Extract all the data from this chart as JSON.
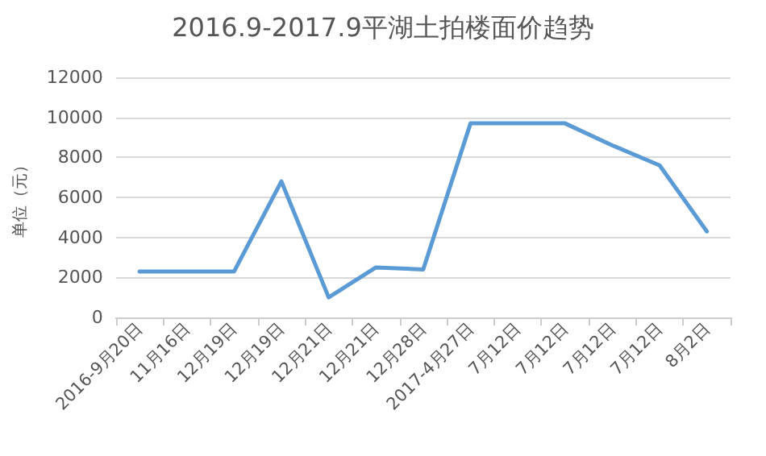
{
  "chart_data": {
    "type": "line",
    "title": "2016.9-2017.9平湖土拍楼面价趋势",
    "ylabel": "单位（元）",
    "categories": [
      "2016-9月20日",
      "11月16日",
      "12月19日",
      "12月19日",
      "12月21日",
      "12月21日",
      "12月28日",
      "2017-4月27日",
      "7月12日",
      "7月12日",
      "7月12日",
      "7月12日",
      "8月2日"
    ],
    "series": [
      {
        "color": "#5b9bd5",
        "values": [
          2300,
          2300,
          2300,
          6800,
          1000,
          2500,
          2400,
          9700,
          9700,
          9700,
          8600,
          7600,
          4300
        ]
      }
    ],
    "ylim": [
      0,
      12000
    ],
    "yticks": [
      0,
      2000,
      4000,
      6000,
      8000,
      10000,
      12000
    ],
    "grid": "y",
    "marker": "none",
    "line_style": "solid"
  }
}
